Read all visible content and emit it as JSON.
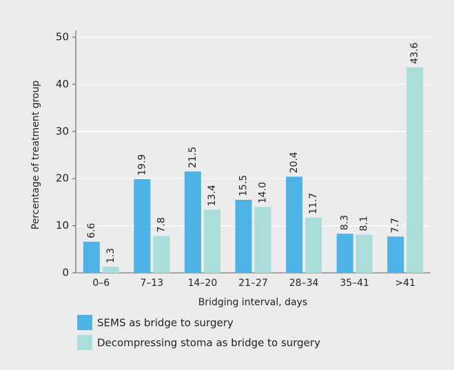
{
  "chart_data": {
    "type": "bar",
    "x_label": "Bridging interval, days",
    "y_label": "Percentage of treatment group",
    "categories": [
      "0–6",
      "7–13",
      "14–20",
      "21–27",
      "28–34",
      "35–41",
      ">41"
    ],
    "series": [
      {
        "name": "SEMS as bridge to surgery",
        "color": "#4db3e6",
        "values": [
          6.6,
          19.9,
          21.5,
          15.5,
          20.4,
          8.3,
          7.7
        ],
        "value_labels": [
          "6.6",
          "19.9",
          "21.5",
          "15.5",
          "20.4",
          "8.3",
          "7.7"
        ]
      },
      {
        "name": "Decompressing stoma as bridge to surgery",
        "color": "#aadeda",
        "values": [
          1.3,
          7.8,
          13.4,
          14.0,
          11.7,
          8.1,
          43.6
        ],
        "value_labels": [
          "1.3",
          "7.8",
          "13.4",
          "14.0",
          "11.7",
          "8.1",
          "43.6"
        ]
      }
    ],
    "ylim": [
      0,
      50
    ],
    "yticks": [
      0,
      10,
      20,
      30,
      40,
      50
    ],
    "grid": true,
    "legend": "bottom-left"
  }
}
